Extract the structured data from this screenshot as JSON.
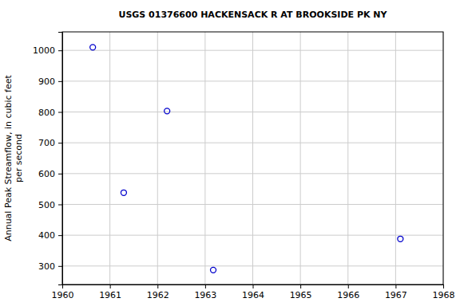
{
  "chart_data": {
    "type": "scatter",
    "title": "USGS 01376600 HACKENSACK R AT BROOKSIDE PK NY",
    "ylabel": [
      "Annual Peak Streamflow, in cubic feet",
      "per second"
    ],
    "x": [
      1960.64,
      1961.29,
      1962.2,
      1963.17,
      1967.1
    ],
    "values": [
      1010,
      538,
      803,
      287,
      388
    ],
    "color": "#0000cc",
    "marker": "circle",
    "xlim": [
      1960,
      1968
    ],
    "xticks": [
      1960,
      1961,
      1962,
      1963,
      1964,
      1965,
      1966,
      1967,
      1968
    ],
    "ylim": [
      240,
      1060
    ],
    "yticks": [
      300,
      400,
      500,
      600,
      700,
      800,
      900,
      1000
    ],
    "grid": true
  }
}
